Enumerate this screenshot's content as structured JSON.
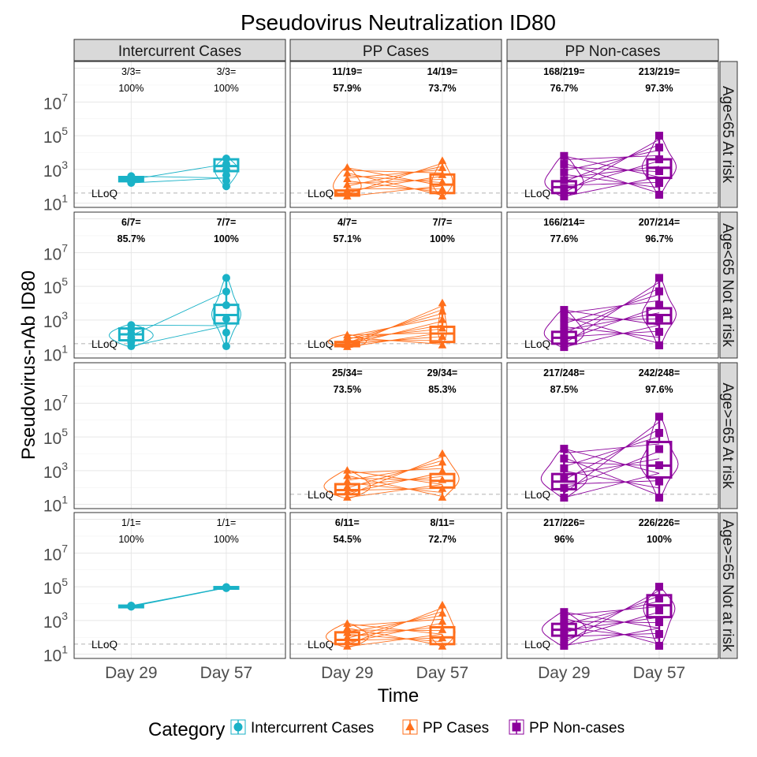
{
  "chart_data": {
    "type": "faceted-box-violin",
    "title": "Pseudovirus Neutralization ID80",
    "xlabel": "Time",
    "ylabel": "Pseudovirus-nAb ID80",
    "x_categories": [
      "Day 29",
      "Day 57"
    ],
    "y_scale": "log10",
    "y_ticks": [
      {
        "base": "10",
        "exp": "1"
      },
      {
        "base": "10",
        "exp": "3"
      },
      {
        "base": "10",
        "exp": "5"
      },
      {
        "base": "10",
        "exp": "7"
      }
    ],
    "y_range_log10": [
      0.75,
      9.4
    ],
    "lloq_label": "LLoQ",
    "lloq_log10": 1.6,
    "columns": [
      "Intercurrent Cases",
      "PP Cases",
      "PP Non-cases"
    ],
    "rows": [
      "Age<65 At risk",
      "Age<65 Not at risk",
      "Age>=65 At risk",
      "Age>=65 Not at risk"
    ],
    "legend": {
      "title": "Category",
      "entries": [
        {
          "label": "Intercurrent Cases",
          "color": "#1ab2c7",
          "shape": "circle"
        },
        {
          "label": "PP Cases",
          "color": "#ff6f1b",
          "shape": "triangle"
        },
        {
          "label": "PP Non-cases",
          "color": "#8b009b",
          "shape": "square"
        }
      ]
    },
    "panels": [
      [
        {
          "day29": {
            "rate": "3/3=",
            "pct": "100%",
            "bold": false,
            "q1": 2.3,
            "med": 2.42,
            "q3": 2.55,
            "lo": 2.2,
            "hi": 2.6,
            "vmax": 0.12
          },
          "day57": {
            "rate": "3/3=",
            "pct": "100%",
            "bold": false,
            "q1": 2.9,
            "med": 3.2,
            "q3": 3.6,
            "lo": 2.0,
            "hi": 3.65,
            "vmax": 0.25
          }
        },
        {
          "day29": {
            "rate": "11/19=",
            "pct": "57.9%",
            "bold": true,
            "q1": 1.45,
            "med": 1.55,
            "q3": 1.75,
            "lo": 1.4,
            "hi": 3.1,
            "vmax": 0.35
          },
          "day57": {
            "rate": "14/19=",
            "pct": "73.7%",
            "bold": true,
            "q1": 1.6,
            "med": 2.1,
            "q3": 2.7,
            "lo": 1.4,
            "hi": 3.5,
            "vmax": 0.22
          }
        },
        {
          "day29": {
            "rate": "168/219=",
            "pct": "76.7%",
            "bold": true,
            "q1": 1.6,
            "med": 1.95,
            "q3": 2.3,
            "lo": 1.4,
            "hi": 3.8,
            "vmax": 0.45
          },
          "day57": {
            "rate": "213/219=",
            "pct": "97.3%",
            "bold": true,
            "q1": 2.5,
            "med": 3.1,
            "q3": 3.6,
            "lo": 1.5,
            "hi": 5.0,
            "vmax": 0.35
          }
        }
      ],
      [
        {
          "day29": {
            "rate": "6/7=",
            "pct": "85.7%",
            "bold": true,
            "q1": 1.8,
            "med": 2.15,
            "q3": 2.5,
            "lo": 1.45,
            "hi": 2.7,
            "vmax": 0.45
          },
          "day57": {
            "rate": "7/7=",
            "pct": "100%",
            "bold": true,
            "q1": 2.8,
            "med": 3.3,
            "q3": 3.9,
            "lo": 1.45,
            "hi": 5.5,
            "vmax": 0.3
          }
        },
        {
          "day29": {
            "rate": "4/7=",
            "pct": "57.1%",
            "bold": true,
            "q1": 1.45,
            "med": 1.55,
            "q3": 1.7,
            "lo": 1.4,
            "hi": 2.1,
            "vmax": 0.4
          },
          "day57": {
            "rate": "7/7=",
            "pct": "100%",
            "bold": true,
            "q1": 1.7,
            "med": 2.2,
            "q3": 2.6,
            "lo": 1.5,
            "hi": 4.0,
            "vmax": 0.1
          }
        },
        {
          "day29": {
            "rate": "166/214=",
            "pct": "77.6%",
            "bold": true,
            "q1": 1.6,
            "med": 1.95,
            "q3": 2.3,
            "lo": 1.4,
            "hi": 3.6,
            "vmax": 0.45
          },
          "day57": {
            "rate": "207/214=",
            "pct": "96.7%",
            "bold": true,
            "q1": 2.8,
            "med": 3.3,
            "q3": 3.7,
            "lo": 1.5,
            "hi": 5.5,
            "vmax": 0.35
          }
        }
      ],
      [
        null,
        {
          "day29": {
            "rate": "25/34=",
            "pct": "73.5%",
            "bold": true,
            "q1": 1.6,
            "med": 1.85,
            "q3": 2.2,
            "lo": 1.4,
            "hi": 3.0,
            "vmax": 0.5
          },
          "day57": {
            "rate": "29/34=",
            "pct": "85.3%",
            "bold": true,
            "q1": 2.0,
            "med": 2.4,
            "q3": 2.8,
            "lo": 1.4,
            "hi": 4.0,
            "vmax": 0.35
          }
        },
        {
          "day29": {
            "rate": "217/248=",
            "pct": "87.5%",
            "bold": true,
            "q1": 1.9,
            "med": 2.35,
            "q3": 2.8,
            "lo": 1.4,
            "hi": 4.3,
            "vmax": 0.5
          },
          "day57": {
            "rate": "242/248=",
            "pct": "97.6%",
            "bold": true,
            "q1": 2.6,
            "med": 3.3,
            "q3": 4.7,
            "lo": 1.4,
            "hi": 6.2,
            "vmax": 0.4
          }
        }
      ],
      [
        {
          "day29": {
            "rate": "1/1=",
            "pct": "100%",
            "bold": false,
            "q1": 3.82,
            "med": 3.85,
            "q3": 3.88,
            "lo": 3.82,
            "hi": 3.88,
            "vmax": 0.12
          },
          "day57": {
            "rate": "1/1=",
            "pct": "100%",
            "bold": false,
            "q1": 4.92,
            "med": 4.95,
            "q3": 4.98,
            "lo": 4.92,
            "hi": 4.98,
            "vmax": 0.12
          }
        },
        {
          "day29": {
            "rate": "6/11=",
            "pct": "54.5%",
            "bold": true,
            "q1": 1.6,
            "med": 1.85,
            "q3": 2.3,
            "lo": 1.45,
            "hi": 2.8,
            "vmax": 0.45
          },
          "day57": {
            "rate": "8/11=",
            "pct": "72.7%",
            "bold": true,
            "q1": 1.6,
            "med": 2.0,
            "q3": 2.6,
            "lo": 1.45,
            "hi": 3.9,
            "vmax": 0.3
          }
        },
        {
          "day29": {
            "rate": "217/226=",
            "pct": "96%",
            "bold": true,
            "q1": 2.1,
            "med": 2.45,
            "q3": 2.8,
            "lo": 1.5,
            "hi": 3.5,
            "vmax": 0.45
          },
          "day57": {
            "rate": "226/226=",
            "pct": "100%",
            "bold": true,
            "q1": 3.2,
            "med": 3.9,
            "q3": 4.5,
            "lo": 1.5,
            "hi": 5.0,
            "vmax": 0.35
          }
        }
      ]
    ]
  }
}
